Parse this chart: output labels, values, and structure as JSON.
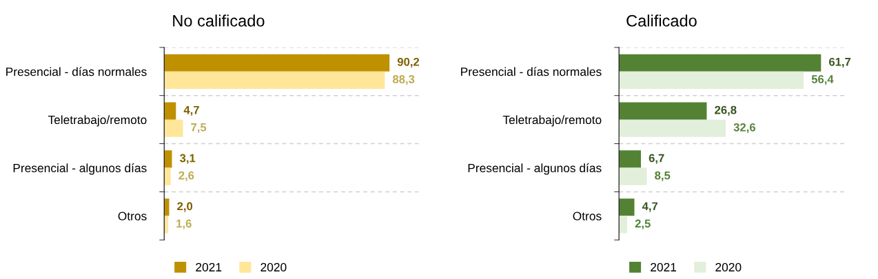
{
  "chart_data": [
    {
      "type": "bar",
      "orientation": "horizontal",
      "title": "No calificado",
      "categories": [
        "Presencial - días normales",
        "Teletrabajo/remoto",
        "Presencial - algunos días",
        "Otros"
      ],
      "series": [
        {
          "name": "2021",
          "color": "#bf9000",
          "values": [
            90.2,
            4.7,
            3.1,
            2.0
          ],
          "value_labels": [
            "90,2",
            "4,7",
            "3,1",
            "2,0"
          ]
        },
        {
          "name": "2020",
          "color": "#ffe699",
          "values": [
            88.3,
            7.5,
            2.6,
            1.6
          ],
          "value_labels": [
            "88,3",
            "7,5",
            "2,6",
            "1,6"
          ]
        }
      ],
      "grid": "y",
      "legend": "bottom"
    },
    {
      "type": "bar",
      "orientation": "horizontal",
      "title": "Calificado",
      "categories": [
        "Presencial - días normales",
        "Teletrabajo/remoto",
        "Presencial - algunos días",
        "Otros"
      ],
      "series": [
        {
          "name": "2021",
          "color": "#548235",
          "values": [
            61.7,
            26.8,
            6.7,
            4.7
          ],
          "value_labels": [
            "61,7",
            "26,8",
            "6,7",
            "4,7"
          ]
        },
        {
          "name": "2020",
          "color": "#e2efda",
          "values": [
            56.4,
            32.6,
            8.5,
            2.5
          ],
          "value_labels": [
            "56,4",
            "32,6",
            "8,5",
            "2,5"
          ]
        }
      ],
      "grid": "y",
      "legend": "bottom"
    }
  ]
}
